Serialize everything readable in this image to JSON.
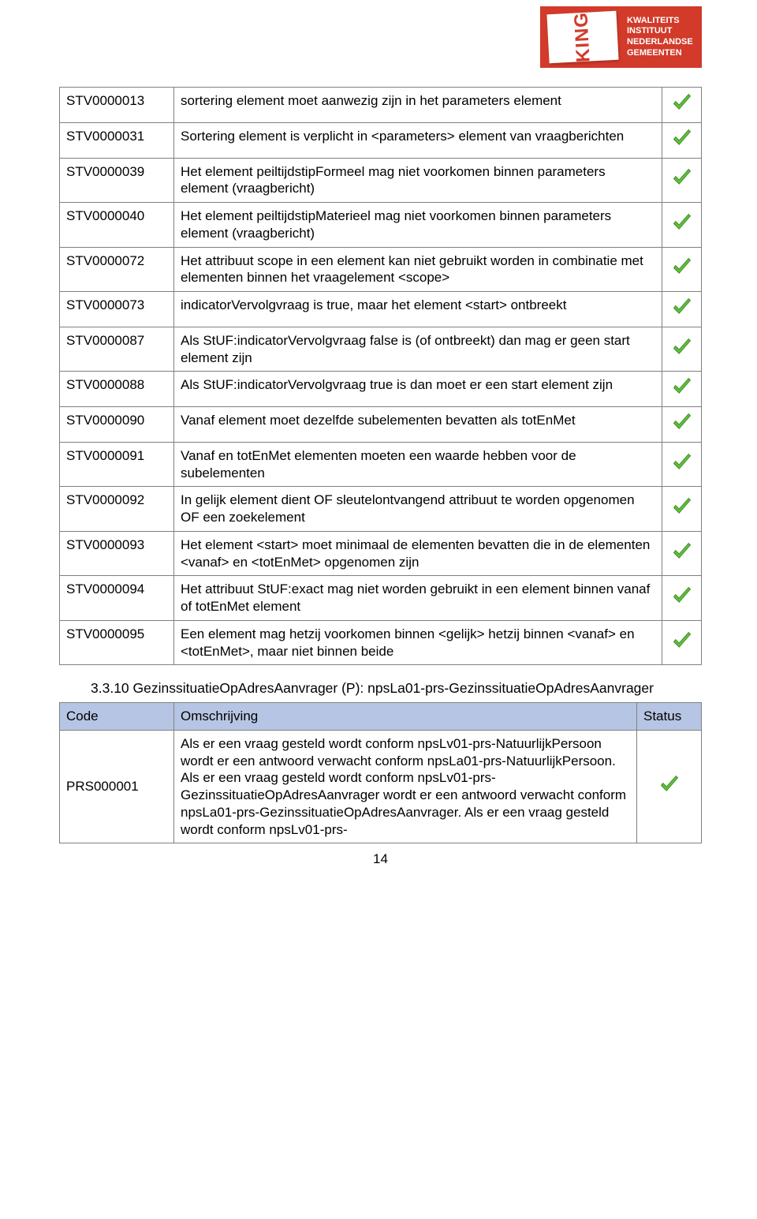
{
  "logo": {
    "brand": "KING",
    "line1": "KWALITEITS",
    "line2": "INSTITUUT",
    "line3": "NEDERLANDSE",
    "line4": "GEMEENTEN",
    "bg_color": "#d23a2a",
    "text_color": "#ffffff"
  },
  "check_icon": {
    "fill": "#5fbf3f",
    "stroke": "#3a8a1f"
  },
  "main_table": {
    "rows": [
      {
        "code": "STV0000013",
        "desc": "sortering element moet aanwezig zijn in het parameters element",
        "status": true
      },
      {
        "code": "STV0000031",
        "desc": "Sortering element is verplicht in <parameters> element van vraagberichten",
        "status": true
      },
      {
        "code": "STV0000039",
        "desc": "Het element peiltijdstipFormeel mag niet voorkomen binnen parameters element (vraagbericht)",
        "status": true
      },
      {
        "code": "STV0000040",
        "desc": "Het element peiltijdstipMaterieel mag niet voorkomen binnen parameters element (vraagbericht)",
        "status": true
      },
      {
        "code": "STV0000072",
        "desc": "Het attribuut scope in een element kan niet gebruikt worden in combinatie met elementen binnen het vraagelement <scope>",
        "status": true
      },
      {
        "code": "STV0000073",
        "desc": "indicatorVervolgvraag is true, maar het element <start> ontbreekt",
        "status": true
      },
      {
        "code": "STV0000087",
        "desc": "Als StUF:indicatorVervolgvraag false is (of ontbreekt) dan mag er geen start element zijn",
        "status": true
      },
      {
        "code": "STV0000088",
        "desc": "Als StUF:indicatorVervolgvraag true is dan moet er een start element zijn",
        "status": true
      },
      {
        "code": "STV0000090",
        "desc": "Vanaf element moet dezelfde subelementen bevatten als totEnMet",
        "status": true
      },
      {
        "code": "STV0000091",
        "desc": "Vanaf en totEnMet elementen moeten een waarde hebben voor de subelementen",
        "status": true
      },
      {
        "code": "STV0000092",
        "desc": "In gelijk element dient OF sleutelontvangend attribuut te worden opgenomen OF een zoekelement",
        "status": true
      },
      {
        "code": "STV0000093",
        "desc": "Het element <start> moet minimaal de elementen bevatten die in de elementen <vanaf> en <totEnMet> opgenomen zijn",
        "status": true
      },
      {
        "code": "STV0000094",
        "desc": "Het attribuut StUF:exact mag niet worden gebruikt in een element binnen vanaf of totEnMet element",
        "status": true
      },
      {
        "code": "STV0000095",
        "desc": "Een element mag hetzij voorkomen binnen <gelijk> hetzij binnen <vanaf> en <totEnMet>, maar niet binnen beide",
        "status": true
      }
    ]
  },
  "section": {
    "title": "3.3.10 GezinssituatieOpAdresAanvrager (P): npsLa01-prs-GezinssituatieOpAdresAanvrager",
    "header": {
      "col1": "Code",
      "col2": "Omschrijving",
      "col3": "Status"
    },
    "header_bg": "#b7c5e4",
    "rows": [
      {
        "code": "PRS000001",
        "desc": "Als er een vraag gesteld wordt conform npsLv01-prs-NatuurlijkPersoon wordt er een antwoord verwacht conform npsLa01-prs-NatuurlijkPersoon. Als er een vraag gesteld wordt conform npsLv01-prs-GezinssituatieOpAdresAanvrager wordt er een antwoord verwacht conform npsLa01-prs-GezinssituatieOpAdresAanvrager. Als er een vraag gesteld wordt conform npsLv01-prs-",
        "status": true
      }
    ]
  },
  "page_number": "14"
}
